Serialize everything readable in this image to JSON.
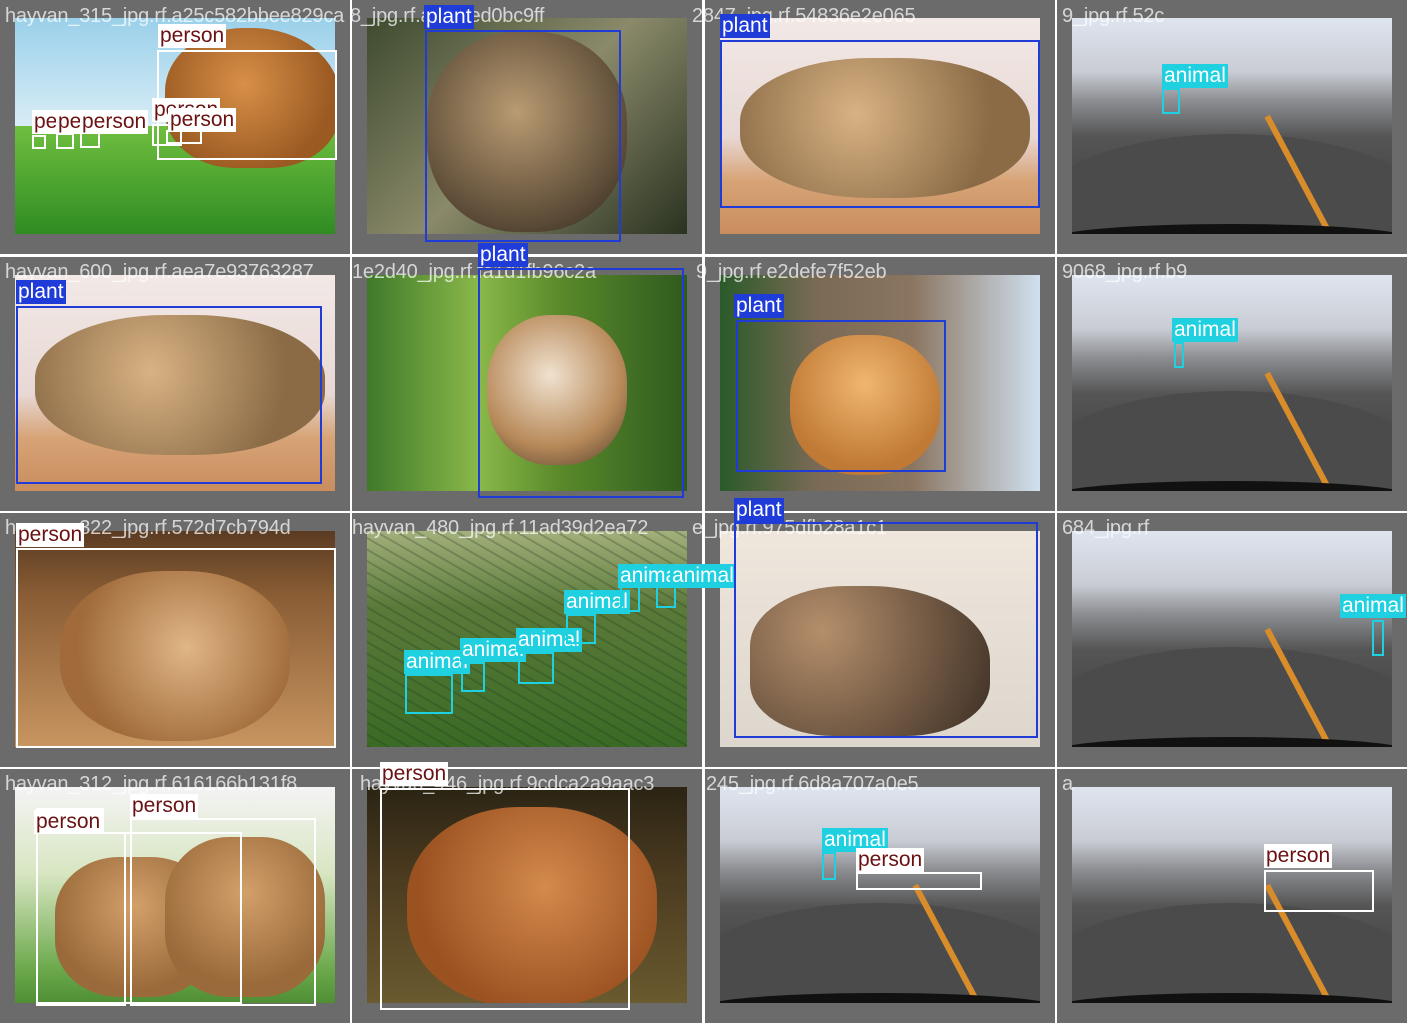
{
  "colors": {
    "person": "#ffffff",
    "plant": "#1f3bd8",
    "animal": "#1fd0e0",
    "tile_bg": "#6b6b6b"
  },
  "labels": {
    "person": "person",
    "plant": "plant",
    "animal": "animal"
  },
  "files": [
    "hayvan_315_jpg.rf.a25c582bbee829ca",
    "8_jpg.rf.a5f10ed0bc9ff",
    "2847_jpg.rf.54836e2e065",
    "9_jpg.rf.52c",
    "hayvan_600_jpg.rf.aea7e93763287",
    "1e2d40_jpg.rf.fa1d1fb96c2a",
    "9_jpg.rf.e2defe7f52eb",
    "9068_jpg.rf.b9",
    "hayvan_322_jpg.rf.572d7cb794d",
    "hayvan_480_jpg.rf.11ad39d2ea72",
    "e_jpg.rf.975dfb28a1c1",
    "684_jpg.rf",
    "hayvan_312_jpg.rf.616166b131f8",
    "hayvan_446_jpg.rf.9cdca2a9aac3",
    "245_jpg.rf.6d8a707a0e5",
    "a"
  ]
}
